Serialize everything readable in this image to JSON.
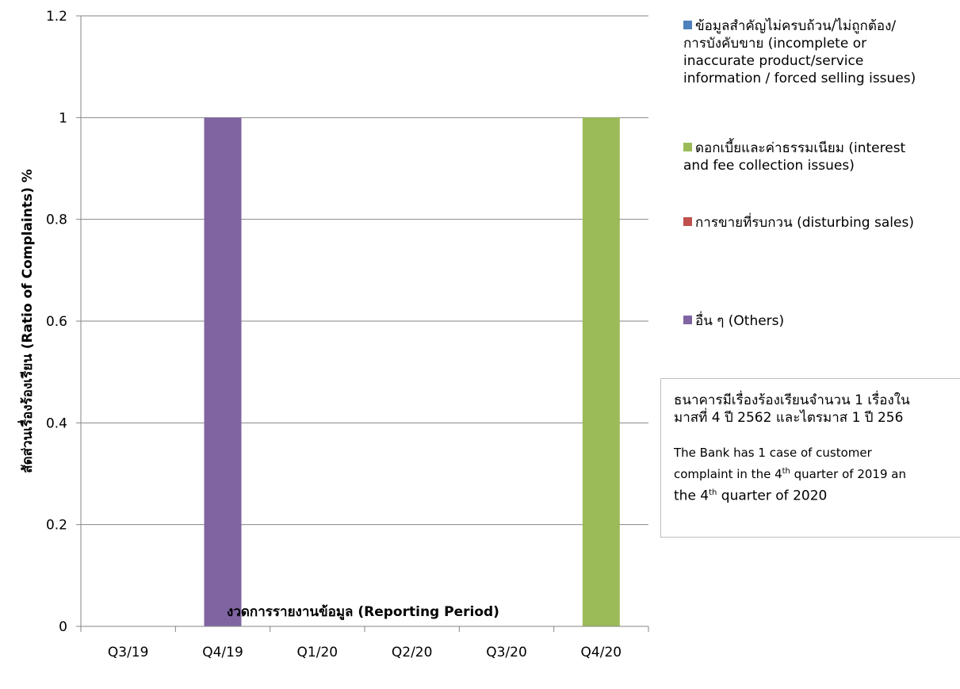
{
  "chart_data": {
    "type": "bar",
    "categories": [
      "Q3/19",
      "Q4/19",
      "Q1/20",
      "Q2/20",
      "Q3/20",
      "Q4/20"
    ],
    "series": [
      {
        "name": "ข้อมูลสำคัญไม่ครบถ้วน/ไม่ถูกต้อง/การบังคับขาย (incomplete or inaccurate product/service information / forced selling issues)",
        "color": "#4f81bd",
        "values": [
          0,
          0,
          0,
          0,
          0,
          0
        ]
      },
      {
        "name": "ดอกเบี้ยและค่าธรรมเนียม (interest and fee collection issues)",
        "color": "#9bbb59",
        "values": [
          0,
          0,
          0,
          0,
          0,
          1
        ]
      },
      {
        "name": "การขายที่รบกวน (disturbing sales)",
        "color": "#c0504d",
        "values": [
          0,
          0,
          0,
          0,
          0,
          0
        ]
      },
      {
        "name": "อื่น ๆ (Others)",
        "color": "#8064a2",
        "values": [
          0,
          1,
          0,
          0,
          0,
          0
        ]
      }
    ],
    "ylim": [
      0,
      1.2
    ],
    "yticks": [
      "0",
      "0.2",
      "0.4",
      "0.6",
      "0.8",
      "1",
      "1.2"
    ],
    "xlabel": "งวดการรายงานข้อมูล (Reporting Period)",
    "ylabel": "สัดส่วนเรื่องร้องเรียน (Ratio of Complaints) %",
    "grid": true,
    "legend_position": "right"
  },
  "legend": {
    "items": [
      {
        "lines": [
          "ข้อมูลสำคัญไม่ครบถ้วน/ไม่ถูกต้อง/",
          "การบังคับขาย (incomplete or",
          "inaccurate product/service",
          "information / forced selling issues)"
        ],
        "color": "#4f81bd"
      },
      {
        "lines": [
          "ดอกเบี้ยและค่าธรรมเนียม (interest",
          "and fee collection issues)"
        ],
        "color": "#9bbb59"
      },
      {
        "lines": [
          "การขายที่รบกวน (disturbing sales)"
        ],
        "color": "#c0504d"
      },
      {
        "lines": [
          "อื่น ๆ (Others)"
        ],
        "color": "#8064a2"
      }
    ]
  },
  "note": {
    "th_line1": "ธนาคารมีเรื่องร้องเรียนจำนวน 1 เรื่องใน",
    "th_line2": "มาสที่ 4 ปี 2562 และไตรมาส 1 ปี 256",
    "en_part1": "The Bank has 1 case of customer",
    "en_part2": "complaint in the 4",
    "en_sup1": "th",
    "en_part3": " quarter of 2019 an",
    "en_part4": "the 4",
    "en_sup2": "th",
    "en_part5": " quarter of 2020"
  }
}
